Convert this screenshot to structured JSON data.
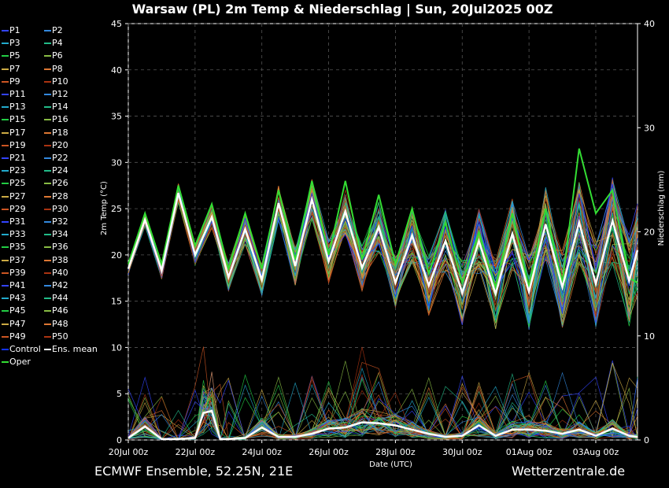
{
  "title": "Warsaw  (PL)  2m Temp & Niederschlag | Sun, 20Jul2025 00Z",
  "footer": {
    "left": "ECMWF Ensemble, 52.25N, 21E",
    "right": "Wetterzentrale.de"
  },
  "chart_data": {
    "type": "line",
    "title": "Warsaw  (PL)  2m Temp & Niederschlag | Sun, 20Jul2025 00Z",
    "xlabel": "Date (UTC)",
    "ylabel": "2m Temp (°C)",
    "y2label": "Niederschlag (mm)",
    "ylim": [
      0,
      45
    ],
    "y2lim": [
      0,
      40
    ],
    "yticks": [
      0,
      5,
      10,
      15,
      20,
      25,
      30,
      35,
      40,
      45
    ],
    "y2ticks": [
      0,
      10,
      20,
      30,
      40
    ],
    "xlim": [
      "2025-07-20 00:00",
      "2025-08-04 06:00"
    ],
    "xticks": [
      {
        "x": "2025-07-20 00:00",
        "label": "20Jul 00z"
      },
      {
        "x": "2025-07-22 00:00",
        "label": "22Jul 00z"
      },
      {
        "x": "2025-07-24 00:00",
        "label": "24Jul 00z"
      },
      {
        "x": "2025-07-26 00:00",
        "label": "26Jul 00z"
      },
      {
        "x": "2025-07-28 00:00",
        "label": "28Jul 00z"
      },
      {
        "x": "2025-07-30 00:00",
        "label": "30Jul 00z"
      },
      {
        "x": "2025-08-01 00:00",
        "label": "01Aug 00z"
      },
      {
        "x": "2025-08-03 00:00",
        "label": "03Aug 00z"
      }
    ],
    "grid": true,
    "legend_position": "left",
    "legend": [
      "P1",
      "P2",
      "P3",
      "P4",
      "P5",
      "P6",
      "P7",
      "P8",
      "P9",
      "P10",
      "P11",
      "P12",
      "P13",
      "P14",
      "P15",
      "P16",
      "P17",
      "P18",
      "P19",
      "P20",
      "P21",
      "P22",
      "P23",
      "P24",
      "P25",
      "P26",
      "P27",
      "P28",
      "P29",
      "P30",
      "P31",
      "P32",
      "P33",
      "P34",
      "P35",
      "P36",
      "P37",
      "P38",
      "P39",
      "P40",
      "P41",
      "P42",
      "P43",
      "P44",
      "P45",
      "P46",
      "P47",
      "P48",
      "P49",
      "P50",
      "Control",
      "Ens. mean",
      "Oper"
    ],
    "colors": {
      "palette": [
        "#3344ff",
        "#3388dd",
        "#22aacc",
        "#22bb88",
        "#22cc44",
        "#88bb44",
        "#ccaa44",
        "#dd7733",
        "#cc5522",
        "#aa3311"
      ],
      "control": "#1133ff",
      "mean": "#ffffff",
      "oper": "#33dd33"
    },
    "series": [
      {
        "name": "Ens. mean",
        "axis": "temp",
        "x": [
          "2025-07-20 00:00",
          "2025-07-20 12:00",
          "2025-07-21 00:00",
          "2025-07-21 12:00",
          "2025-07-22 00:00",
          "2025-07-22 12:00",
          "2025-07-23 00:00",
          "2025-07-23 12:00",
          "2025-07-24 00:00",
          "2025-07-24 12:00",
          "2025-07-25 00:00",
          "2025-07-25 12:00",
          "2025-07-26 00:00",
          "2025-07-26 12:00",
          "2025-07-27 00:00",
          "2025-07-27 12:00",
          "2025-07-28 00:00",
          "2025-07-28 12:00",
          "2025-07-29 00:00",
          "2025-07-29 12:00",
          "2025-07-30 00:00",
          "2025-07-30 12:00",
          "2025-07-31 00:00",
          "2025-07-31 12:00",
          "2025-08-01 00:00",
          "2025-08-01 12:00",
          "2025-08-02 00:00",
          "2025-08-02 12:00",
          "2025-08-03 00:00",
          "2025-08-03 12:00",
          "2025-08-04 00:00",
          "2025-08-04 06:00"
        ],
        "y": [
          18.5,
          23.8,
          18.3,
          26.7,
          20.0,
          24.1,
          17.6,
          22.8,
          17.3,
          25.6,
          18.8,
          26.0,
          19.3,
          24.7,
          18.6,
          23.0,
          17.0,
          22.1,
          16.7,
          21.5,
          15.9,
          21.5,
          15.8,
          22.3,
          16.0,
          23.3,
          16.5,
          23.5,
          16.9,
          23.7,
          17.2,
          20.5
        ]
      },
      {
        "name": "Oper",
        "axis": "temp",
        "x": [
          "2025-07-20 00:00",
          "2025-07-20 12:00",
          "2025-07-21 00:00",
          "2025-07-21 12:00",
          "2025-07-22 00:00",
          "2025-07-22 12:00",
          "2025-07-23 00:00",
          "2025-07-23 12:00",
          "2025-07-24 00:00",
          "2025-07-24 12:00",
          "2025-07-25 00:00",
          "2025-07-25 12:00",
          "2025-07-26 00:00",
          "2025-07-26 12:00",
          "2025-07-27 00:00",
          "2025-07-27 12:00",
          "2025-07-28 00:00",
          "2025-07-28 12:00",
          "2025-07-29 00:00",
          "2025-07-29 12:00",
          "2025-07-30 00:00",
          "2025-07-30 12:00",
          "2025-07-31 00:00",
          "2025-07-31 12:00",
          "2025-08-01 00:00",
          "2025-08-01 12:00",
          "2025-08-02 00:00",
          "2025-08-02 12:00",
          "2025-08-03 00:00",
          "2025-08-03 12:00",
          "2025-08-04 00:00",
          "2025-08-04 06:00"
        ],
        "y": [
          19.0,
          24.5,
          19.0,
          27.5,
          21.0,
          25.5,
          18.5,
          24.5,
          18.5,
          27.0,
          19.5,
          28.0,
          20.0,
          28.0,
          19.5,
          26.5,
          19.0,
          25.0,
          18.0,
          23.5,
          17.0,
          22.5,
          16.5,
          24.5,
          16.5,
          25.0,
          17.0,
          31.5,
          24.5,
          27.0,
          17.5,
          17.0
        ]
      },
      {
        "name": "Ens. mean",
        "axis": "precip",
        "x": [
          "2025-07-20 00:00",
          "2025-07-20 12:00",
          "2025-07-21 00:00",
          "2025-07-21 12:00",
          "2025-07-22 00:00",
          "2025-07-22 06:00",
          "2025-07-22 12:00",
          "2025-07-22 18:00",
          "2025-07-23 00:00",
          "2025-07-23 12:00",
          "2025-07-24 00:00",
          "2025-07-24 12:00",
          "2025-07-25 00:00",
          "2025-07-25 12:00",
          "2025-07-26 00:00",
          "2025-07-26 12:00",
          "2025-07-27 00:00",
          "2025-07-27 12:00",
          "2025-07-28 00:00",
          "2025-07-28 12:00",
          "2025-07-29 00:00",
          "2025-07-29 12:00",
          "2025-07-30 00:00",
          "2025-07-30 12:00",
          "2025-07-31 00:00",
          "2025-07-31 12:00",
          "2025-08-01 00:00",
          "2025-08-01 12:00",
          "2025-08-02 00:00",
          "2025-08-02 12:00",
          "2025-08-03 00:00",
          "2025-08-03 12:00",
          "2025-08-04 00:00",
          "2025-08-04 06:00"
        ],
        "y": [
          0.2,
          1.3,
          0.1,
          0.1,
          0.2,
          2.6,
          2.8,
          0.1,
          0.1,
          0.2,
          1.2,
          0.3,
          0.3,
          0.6,
          1.1,
          1.2,
          1.7,
          1.6,
          1.4,
          1.0,
          0.6,
          0.3,
          0.4,
          1.4,
          0.4,
          1.0,
          1.0,
          0.9,
          0.6,
          1.0,
          0.4,
          1.1,
          0.4,
          0.3
        ]
      }
    ]
  }
}
